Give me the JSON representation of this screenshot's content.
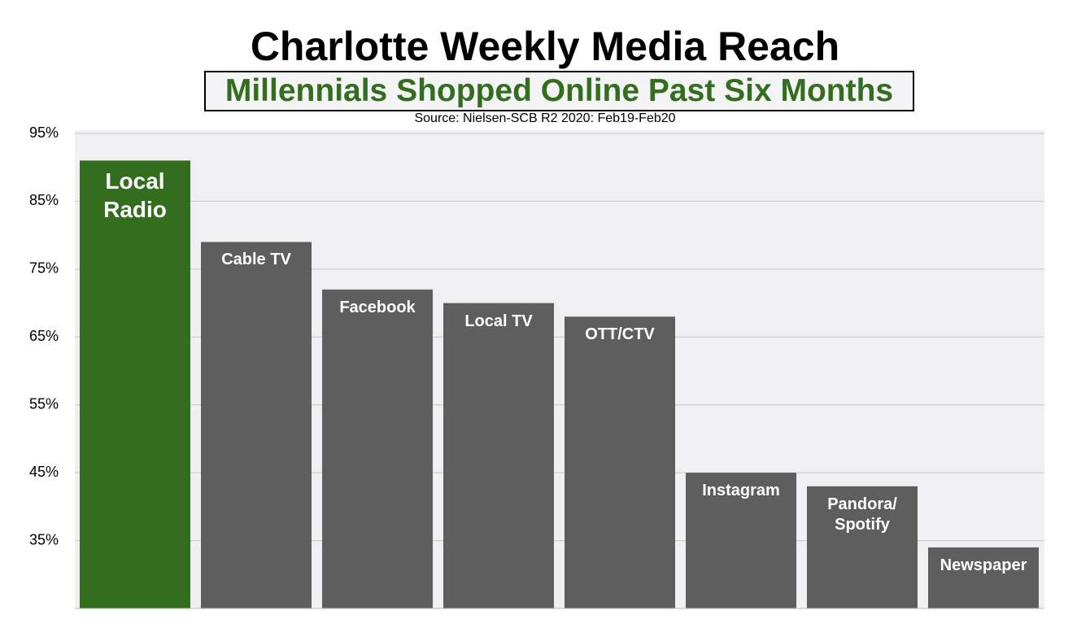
{
  "chart_data": {
    "type": "bar",
    "title": "Charlotte Weekly Media Reach",
    "subtitle": "Millennials Shopped Online Past Six Months",
    "source": "Source: Nielsen-SCB R2 2020: Feb19-Feb20",
    "categories": [
      "Local Radio",
      "Cable TV",
      "Facebook",
      "Local TV",
      "OTT/CTV",
      "Instagram",
      "Pandora/ Spotify",
      "Newspaper"
    ],
    "values": [
      91,
      79,
      72,
      70,
      68,
      45,
      43,
      34
    ],
    "colors": [
      "#336e1e",
      "#5e5e5e",
      "#5e5e5e",
      "#5e5e5e",
      "#5e5e5e",
      "#5e5e5e",
      "#5e5e5e",
      "#5e5e5e"
    ],
    "ylim": [
      25,
      95
    ],
    "yticks": [
      {
        "value": 35,
        "label": "35%"
      },
      {
        "value": 45,
        "label": "45%"
      },
      {
        "value": 55,
        "label": "55%"
      },
      {
        "value": 65,
        "label": "65%"
      },
      {
        "value": 75,
        "label": "75%"
      },
      {
        "value": 85,
        "label": "85%"
      },
      {
        "value": 95,
        "label": "95%"
      }
    ],
    "grid": true
  }
}
